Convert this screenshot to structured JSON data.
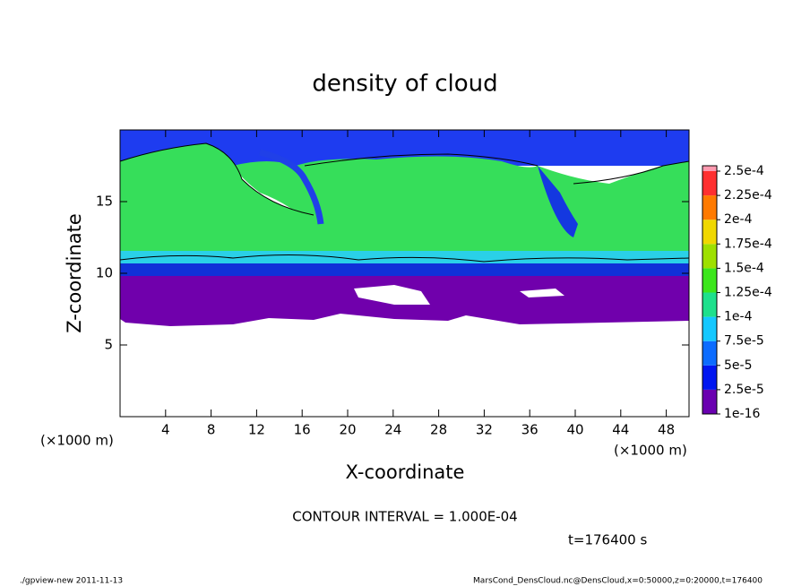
{
  "chart_data": {
    "type": "contour",
    "title": "density of cloud",
    "xlabel": "X-coordinate",
    "ylabel": "Z-coordinate",
    "xunit": "(×1000 m)",
    "yunit": "(×1000 m)",
    "xlim": [
      0,
      50
    ],
    "ylim": [
      0,
      20
    ],
    "xticks": [
      4,
      8,
      12,
      16,
      20,
      24,
      28,
      32,
      36,
      40,
      44,
      48
    ],
    "yticks": [
      5,
      10,
      15
    ],
    "colorbar": {
      "ticks": [
        1e-16,
        {
          "value": 2.5e-05,
          "label": "2.5e-5"
        },
        {
          "value": 5e-05,
          "label": "5e-5"
        },
        {
          "value": 7.5e-05,
          "label": "7.5e-5"
        },
        {
          "value": 0.0001,
          "label": "1e-4"
        },
        {
          "value": 0.000125,
          "label": "1.25e-4"
        },
        {
          "value": 0.00015,
          "label": "1.5e-4"
        },
        {
          "value": 0.000175,
          "label": "1.75e-4"
        },
        {
          "value": 0.0002,
          "label": "2e-4"
        },
        {
          "value": 0.000225,
          "label": "2.25e-4"
        },
        {
          "value": 0.00025,
          "label": "2.5e-4"
        }
      ],
      "colors": [
        "#6a00b0",
        "#0016f0",
        "#0c6cff",
        "#14c8ff",
        "#1ee08c",
        "#3ce61c",
        "#9ee000",
        "#f0d800",
        "#ff7a00",
        "#ff3030",
        "#ff9ab0"
      ]
    },
    "contour_interval": "CONTOUR INTERVAL = 1.000E-04",
    "time_label": "t=176400 s",
    "footer_left": "./gpview-new  2011-11-13",
    "footer_right": "MarsCond_DensCloud.nc@DensCloud,x=0:50000,z=0:20000,t=176400"
  }
}
